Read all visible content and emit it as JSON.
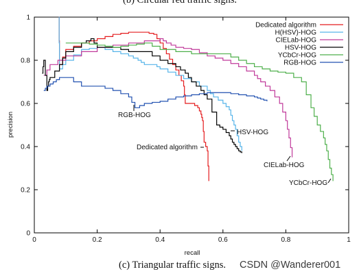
{
  "top_caption": "(b) Circular red traffic signs.",
  "bottom_caption": "(c) Triangular traffic signs.",
  "watermark": "CSDN @Wanderer001",
  "chart_data": {
    "type": "line",
    "title": "",
    "xlabel": "recall",
    "ylabel": "precision",
    "xlim": [
      0,
      1
    ],
    "ylim": [
      0,
      1
    ],
    "xticks": [
      "0",
      "0.2",
      "0.4",
      "0.6",
      "0.8",
      "1"
    ],
    "yticks": [
      "0",
      "0.2",
      "0.4",
      "0.6",
      "0.8",
      "1"
    ],
    "grid": false,
    "legend_position": "top-right",
    "series": [
      {
        "name": "Dedicated algorithm",
        "color": "#e41a1c",
        "x": [
          0.078,
          0.08,
          0.1,
          0.15,
          0.2,
          0.25,
          0.3,
          0.35,
          0.38,
          0.4,
          0.42,
          0.44,
          0.46,
          0.475,
          0.48,
          0.5,
          0.52,
          0.53,
          0.535,
          0.54,
          0.55,
          0.555
        ],
        "y": [
          1.0,
          0.78,
          0.85,
          0.88,
          0.9,
          0.92,
          0.93,
          0.93,
          0.92,
          0.88,
          0.83,
          0.78,
          0.73,
          0.68,
          0.6,
          0.6,
          0.58,
          0.55,
          0.52,
          0.42,
          0.38,
          0.24
        ],
        "annotation": "Dedicated algorithm"
      },
      {
        "name": "H(HSV)-HOG",
        "color": "#56b4e9",
        "x": [
          0.078,
          0.08,
          0.1,
          0.15,
          0.2,
          0.25,
          0.3,
          0.33,
          0.35,
          0.38,
          0.4,
          0.45,
          0.5,
          0.55,
          0.57,
          0.6,
          0.62,
          0.63,
          0.64,
          0.65,
          0.66
        ],
        "y": [
          1.0,
          0.76,
          0.8,
          0.85,
          0.86,
          0.84,
          0.82,
          0.8,
          0.78,
          0.78,
          0.76,
          0.73,
          0.7,
          0.66,
          0.63,
          0.6,
          0.57,
          0.52,
          0.48,
          0.42,
          0.38
        ]
      },
      {
        "name": "CIELab-HOG",
        "color": "#c0399a",
        "x": [
          0.03,
          0.05,
          0.1,
          0.2,
          0.3,
          0.4,
          0.42,
          0.45,
          0.5,
          0.55,
          0.6,
          0.65,
          0.7,
          0.72,
          0.75,
          0.78,
          0.8,
          0.81,
          0.82
        ],
        "y": [
          0.73,
          0.78,
          0.82,
          0.86,
          0.88,
          0.9,
          0.88,
          0.86,
          0.85,
          0.82,
          0.8,
          0.77,
          0.73,
          0.7,
          0.66,
          0.6,
          0.52,
          0.44,
          0.35
        ],
        "annotation": "CIELab-HOG"
      },
      {
        "name": "HSV-HOG",
        "color": "#000000",
        "x": [
          0.025,
          0.03,
          0.04,
          0.045,
          0.05,
          0.08,
          0.1,
          0.15,
          0.18,
          0.2,
          0.25,
          0.3,
          0.35,
          0.4,
          0.45,
          0.48,
          0.5,
          0.53,
          0.55,
          0.58,
          0.6,
          0.62,
          0.63,
          0.64,
          0.65,
          0.66
        ],
        "y": [
          0.74,
          0.8,
          0.66,
          0.7,
          0.72,
          0.78,
          0.84,
          0.88,
          0.9,
          0.86,
          0.86,
          0.84,
          0.84,
          0.8,
          0.77,
          0.74,
          0.7,
          0.66,
          0.62,
          0.5,
          0.48,
          0.45,
          0.42,
          0.4,
          0.38,
          0.37
        ],
        "annotation": "HSV-HOG"
      },
      {
        "name": "YCbCr-HOG",
        "color": "#4daf4a",
        "x": [
          0.1,
          0.15,
          0.2,
          0.25,
          0.3,
          0.35,
          0.4,
          0.5,
          0.6,
          0.65,
          0.7,
          0.75,
          0.8,
          0.85,
          0.88,
          0.9,
          0.92,
          0.93,
          0.94,
          0.95
        ],
        "y": [
          0.88,
          0.88,
          0.87,
          0.86,
          0.87,
          0.88,
          0.85,
          0.83,
          0.83,
          0.8,
          0.77,
          0.75,
          0.74,
          0.7,
          0.58,
          0.5,
          0.44,
          0.38,
          0.3,
          0.24
        ],
        "annotation": "YCbCr-HOG"
      },
      {
        "name": "RGB-HOG",
        "color": "#2050b0",
        "x": [
          0.03,
          0.04,
          0.06,
          0.08,
          0.1,
          0.15,
          0.2,
          0.25,
          0.3,
          0.32,
          0.35,
          0.4,
          0.45,
          0.5,
          0.55,
          0.6,
          0.65,
          0.7,
          0.72,
          0.74
        ],
        "y": [
          0.66,
          0.68,
          0.7,
          0.72,
          0.72,
          0.68,
          0.68,
          0.66,
          0.63,
          0.58,
          0.6,
          0.61,
          0.63,
          0.64,
          0.65,
          0.65,
          0.64,
          0.63,
          0.62,
          0.61
        ],
        "annotation": "RGB-HOG"
      }
    ]
  }
}
